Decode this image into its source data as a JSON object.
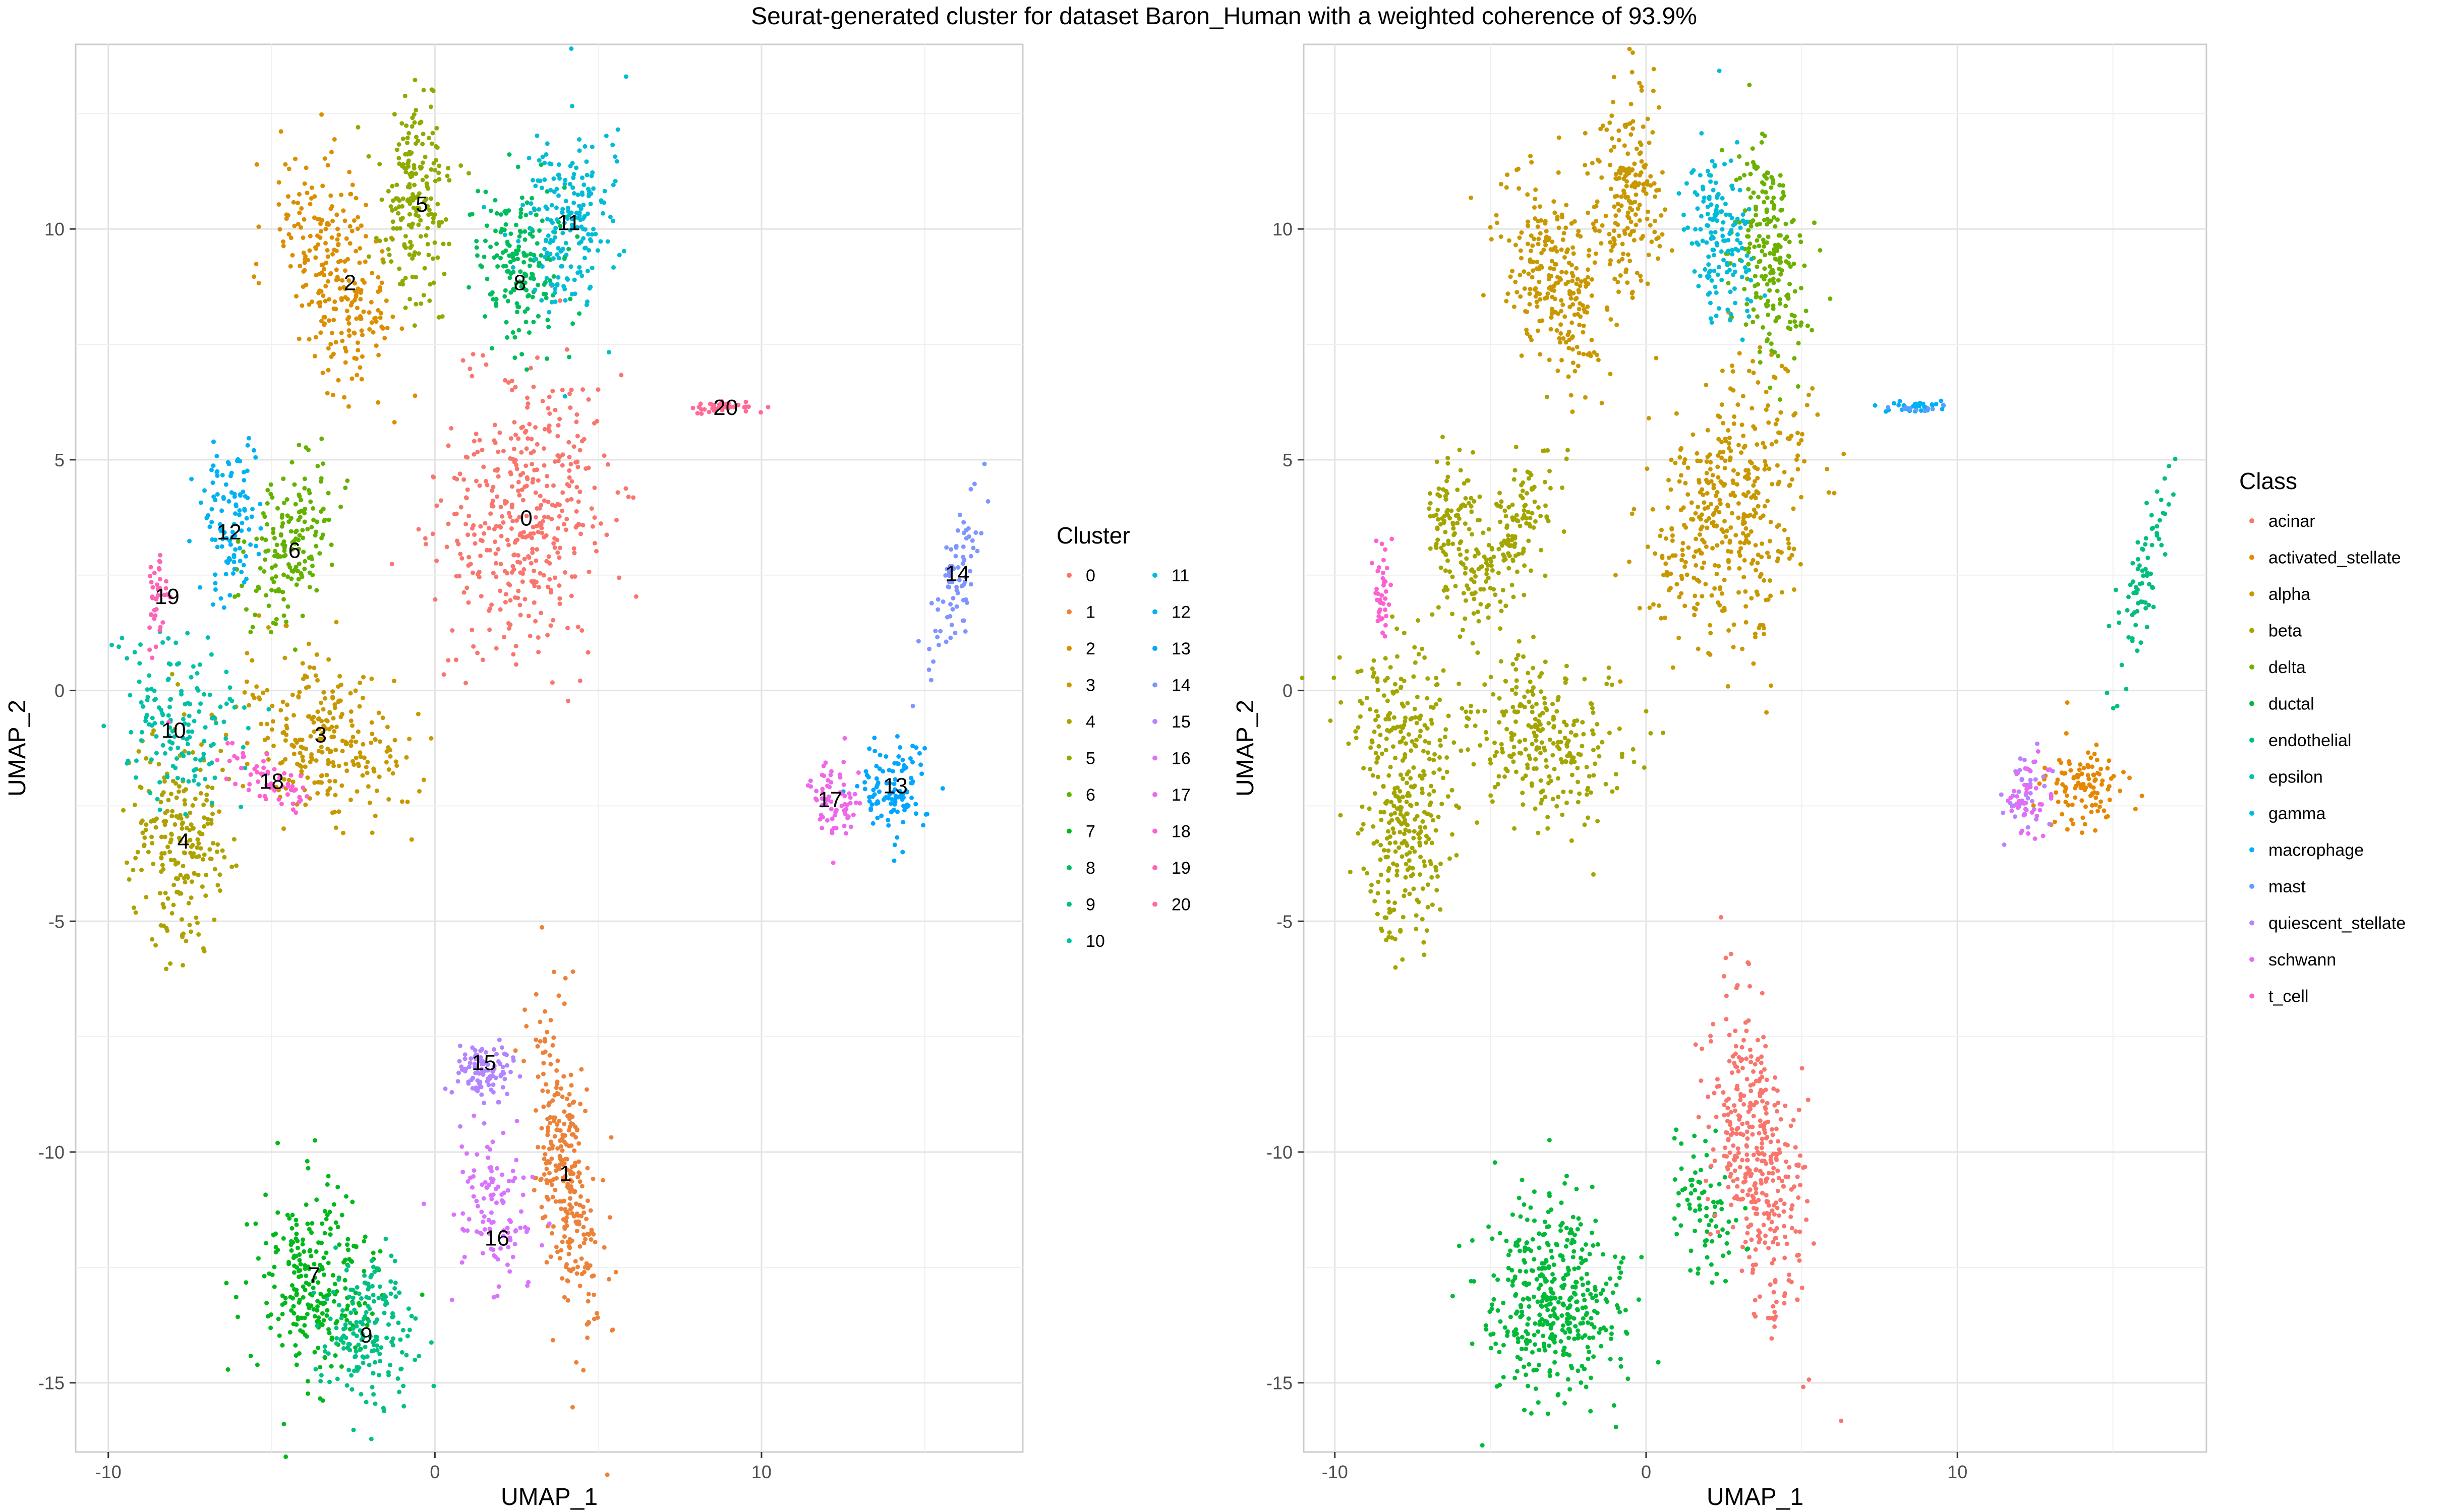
{
  "title": "Seurat-generated cluster for dataset Baron_Human with a weighted coherence of 93.9%",
  "chart_data": [
    {
      "type": "scatter",
      "xlabel": "UMAP_1",
      "ylabel": "UMAP_2",
      "xlim": [
        -11,
        18
      ],
      "ylim": [
        -16.5,
        14
      ],
      "xticks": [
        {
          "v": -10,
          "label": "-10"
        },
        {
          "v": 0,
          "label": "0"
        },
        {
          "v": 10,
          "label": "10"
        }
      ],
      "yticks": [
        {
          "v": -15,
          "label": "-15"
        },
        {
          "v": -10,
          "label": "-10"
        },
        {
          "v": -5,
          "label": "-5"
        },
        {
          "v": 0,
          "label": "0"
        },
        {
          "v": 5,
          "label": "5"
        },
        {
          "v": 10,
          "label": "10"
        }
      ],
      "grid": true,
      "legend_position": "right",
      "legend_title": "Cluster",
      "legend_columns": 2,
      "legend": [
        {
          "label": "0",
          "color": "#F8766D"
        },
        {
          "label": "1",
          "color": "#EC8239"
        },
        {
          "label": "2",
          "color": "#DB8E00"
        },
        {
          "label": "3",
          "color": "#C79800"
        },
        {
          "label": "4",
          "color": "#AEA200"
        },
        {
          "label": "5",
          "color": "#8FAA00"
        },
        {
          "label": "6",
          "color": "#64B200"
        },
        {
          "label": "7",
          "color": "#00B81B"
        },
        {
          "label": "8",
          "color": "#00BD5C"
        },
        {
          "label": "9",
          "color": "#00C085"
        },
        {
          "label": "10",
          "color": "#00C1A7"
        },
        {
          "label": "11",
          "color": "#00BCD6"
        },
        {
          "label": "12",
          "color": "#00B2F3"
        },
        {
          "label": "13",
          "color": "#00A6FF"
        },
        {
          "label": "14",
          "color": "#7F96FF"
        },
        {
          "label": "15",
          "color": "#B385FF"
        },
        {
          "label": "16",
          "color": "#D874FD"
        },
        {
          "label": "17",
          "color": "#EF67EB"
        },
        {
          "label": "18",
          "color": "#FD61D3"
        },
        {
          "label": "19",
          "color": "#FF63B6"
        },
        {
          "label": "20",
          "color": "#FF6B94"
        }
      ],
      "cluster_labels": [
        {
          "text": "0",
          "x": 2.8,
          "y": 3.7
        },
        {
          "text": "1",
          "x": 4.0,
          "y": -10.5
        },
        {
          "text": "2",
          "x": -2.6,
          "y": 8.8
        },
        {
          "text": "3",
          "x": -3.5,
          "y": -1.0
        },
        {
          "text": "4",
          "x": -7.7,
          "y": -3.3
        },
        {
          "text": "5",
          "x": -0.4,
          "y": 10.5
        },
        {
          "text": "6",
          "x": -4.3,
          "y": 3.0
        },
        {
          "text": "7",
          "x": -3.7,
          "y": -12.7
        },
        {
          "text": "8",
          "x": 2.6,
          "y": 8.8
        },
        {
          "text": "9",
          "x": -2.1,
          "y": -14.0
        },
        {
          "text": "10",
          "x": -8.0,
          "y": -0.9
        },
        {
          "text": "11",
          "x": 4.1,
          "y": 10.1
        },
        {
          "text": "12",
          "x": -6.3,
          "y": 3.4
        },
        {
          "text": "13",
          "x": 14.1,
          "y": -2.1
        },
        {
          "text": "14",
          "x": 16.0,
          "y": 2.5
        },
        {
          "text": "15",
          "x": 1.5,
          "y": -8.1
        },
        {
          "text": "16",
          "x": 1.9,
          "y": -11.9
        },
        {
          "text": "17",
          "x": 12.1,
          "y": -2.4
        },
        {
          "text": "18",
          "x": -5.0,
          "y": -2.0
        },
        {
          "text": "19",
          "x": -8.2,
          "y": 2.0
        },
        {
          "text": "20",
          "x": 8.9,
          "y": 6.1
        }
      ],
      "clusters": [
        {
          "id": "0",
          "color": "#F8766D",
          "cx": 2.7,
          "cy": 3.8,
          "sx": 1.2,
          "sy": 1.6,
          "rot": -30,
          "n": 420
        },
        {
          "id": "1",
          "color": "#EC8239",
          "cx": 4.0,
          "cy": -10.3,
          "sx": 0.45,
          "sy": 1.8,
          "rot": 10,
          "n": 300
        },
        {
          "id": "2",
          "color": "#DB8E00",
          "cx": -3.0,
          "cy": 9.0,
          "sx": 0.75,
          "sy": 1.3,
          "rot": 30,
          "n": 260
        },
        {
          "id": "3",
          "color": "#C79800",
          "cx": -3.4,
          "cy": -1.0,
          "sx": 1.3,
          "sy": 0.85,
          "rot": -10,
          "n": 260
        },
        {
          "id": "4",
          "color": "#AEA200",
          "cx": -7.8,
          "cy": -3.3,
          "sx": 0.7,
          "sy": 1.15,
          "rot": 0,
          "n": 220
        },
        {
          "id": "5",
          "color": "#8FAA00",
          "cx": -0.6,
          "cy": 10.7,
          "sx": 0.55,
          "sy": 1.1,
          "rot": 0,
          "n": 200
        },
        {
          "id": "6",
          "color": "#64B200",
          "cx": -4.5,
          "cy": 3.1,
          "sx": 0.55,
          "sy": 1.1,
          "rot": -30,
          "n": 170
        },
        {
          "id": "7",
          "color": "#00B81B",
          "cx": -3.7,
          "cy": -12.8,
          "sx": 0.9,
          "sy": 1.1,
          "rot": 0,
          "n": 260
        },
        {
          "id": "8",
          "color": "#00BD5C",
          "cx": 2.6,
          "cy": 9.2,
          "sx": 0.7,
          "sy": 1.0,
          "rot": 10,
          "n": 180
        },
        {
          "id": "9",
          "color": "#00C085",
          "cx": -2.0,
          "cy": -13.9,
          "sx": 0.7,
          "sy": 0.8,
          "rot": 0,
          "n": 180
        },
        {
          "id": "10",
          "color": "#00C1A7",
          "cx": -7.8,
          "cy": -0.7,
          "sx": 0.9,
          "sy": 1.0,
          "rot": 40,
          "n": 150
        },
        {
          "id": "11",
          "color": "#00BCD6",
          "cx": 4.1,
          "cy": 10.2,
          "sx": 0.7,
          "sy": 1.0,
          "rot": 0,
          "n": 200
        },
        {
          "id": "12",
          "color": "#00B2F3",
          "cx": -6.3,
          "cy": 3.6,
          "sx": 0.45,
          "sy": 0.8,
          "rot": 0,
          "n": 110
        },
        {
          "id": "13",
          "color": "#00A6FF",
          "cx": 14.0,
          "cy": -2.1,
          "sx": 0.6,
          "sy": 0.5,
          "rot": 0,
          "n": 110
        },
        {
          "id": "14",
          "color": "#7F96FF",
          "cx": 15.9,
          "cy": 2.3,
          "sx": 0.25,
          "sy": 1.1,
          "rot": -20,
          "n": 80
        },
        {
          "id": "15",
          "color": "#B385FF",
          "cx": 1.5,
          "cy": -8.2,
          "sx": 0.5,
          "sy": 0.4,
          "rot": 0,
          "n": 100
        },
        {
          "id": "16",
          "color": "#D874FD",
          "cx": 1.8,
          "cy": -11.3,
          "sx": 0.55,
          "sy": 0.9,
          "rot": 20,
          "n": 110
        },
        {
          "id": "17",
          "color": "#EF67EB",
          "cx": 12.3,
          "cy": -2.3,
          "sx": 0.35,
          "sy": 0.45,
          "rot": 0,
          "n": 70
        },
        {
          "id": "18",
          "color": "#FD61D3",
          "cx": -5.2,
          "cy": -1.9,
          "sx": 0.8,
          "sy": 0.22,
          "rot": -20,
          "n": 60
        },
        {
          "id": "19",
          "color": "#FF63B6",
          "cx": -8.5,
          "cy": 2.2,
          "sx": 0.15,
          "sy": 0.6,
          "rot": 0,
          "n": 40
        },
        {
          "id": "20",
          "color": "#FF6B94",
          "cx": 8.8,
          "cy": 6.15,
          "sx": 0.6,
          "sy": 0.06,
          "rot": 0,
          "n": 40
        }
      ]
    },
    {
      "type": "scatter",
      "xlabel": "UMAP_1",
      "ylabel": "UMAP_2",
      "xlim": [
        -11,
        18
      ],
      "ylim": [
        -16.5,
        14
      ],
      "xticks": [
        {
          "v": -10,
          "label": "-10"
        },
        {
          "v": 0,
          "label": "0"
        },
        {
          "v": 10,
          "label": "10"
        }
      ],
      "yticks": [
        {
          "v": -15,
          "label": "-15"
        },
        {
          "v": -10,
          "label": "-10"
        },
        {
          "v": -5,
          "label": "-5"
        },
        {
          "v": 0,
          "label": "0"
        },
        {
          "v": 5,
          "label": "5"
        },
        {
          "v": 10,
          "label": "10"
        }
      ],
      "grid": true,
      "legend_position": "right",
      "legend_title": "Class",
      "legend_columns": 1,
      "legend": [
        {
          "label": "acinar",
          "color": "#F8766D"
        },
        {
          "label": "activated_stellate",
          "color": "#E58700"
        },
        {
          "label": "alpha",
          "color": "#C99800"
        },
        {
          "label": "beta",
          "color": "#A3A500"
        },
        {
          "label": "delta",
          "color": "#6BB100"
        },
        {
          "label": "ductal",
          "color": "#00BA38"
        },
        {
          "label": "endothelial",
          "color": "#00BF7D"
        },
        {
          "label": "epsilon",
          "color": "#00C0AF"
        },
        {
          "label": "gamma",
          "color": "#00BCD8"
        },
        {
          "label": "macrophage",
          "color": "#00B0F6"
        },
        {
          "label": "mast",
          "color": "#619CFF"
        },
        {
          "label": "quiescent_stellate",
          "color": "#B983FF"
        },
        {
          "label": "schwann",
          "color": "#E76BF3"
        },
        {
          "label": "t_cell",
          "color": "#FD61D1"
        }
      ],
      "clusters": [
        {
          "id": "alpha",
          "color": "#C99800",
          "cx": 2.7,
          "cy": 3.8,
          "sx": 1.2,
          "sy": 1.6,
          "rot": -30,
          "n": 420
        },
        {
          "id": "alpha",
          "color": "#C99800",
          "cx": -3.0,
          "cy": 9.0,
          "sx": 0.75,
          "sy": 1.3,
          "rot": 30,
          "n": 260
        },
        {
          "id": "alpha",
          "color": "#C99800",
          "cx": -0.6,
          "cy": 10.7,
          "sx": 0.55,
          "sy": 1.1,
          "rot": 0,
          "n": 200
        },
        {
          "id": "beta",
          "color": "#A3A500",
          "cx": -3.4,
          "cy": -1.0,
          "sx": 1.3,
          "sy": 0.85,
          "rot": -10,
          "n": 260
        },
        {
          "id": "beta",
          "color": "#A3A500",
          "cx": -7.8,
          "cy": -3.3,
          "sx": 0.7,
          "sy": 1.15,
          "rot": 0,
          "n": 220
        },
        {
          "id": "beta",
          "color": "#A3A500",
          "cx": -4.5,
          "cy": 3.1,
          "sx": 0.55,
          "sy": 1.1,
          "rot": -30,
          "n": 170
        },
        {
          "id": "beta",
          "color": "#A3A500",
          "cx": -6.3,
          "cy": 3.6,
          "sx": 0.45,
          "sy": 0.8,
          "rot": 0,
          "n": 110
        },
        {
          "id": "beta",
          "color": "#A3A500",
          "cx": -7.8,
          "cy": -0.7,
          "sx": 0.9,
          "sy": 1.0,
          "rot": 40,
          "n": 150
        },
        {
          "id": "delta",
          "color": "#6BB100",
          "cx": 3.9,
          "cy": 9.6,
          "sx": 0.55,
          "sy": 1.2,
          "rot": 10,
          "n": 220
        },
        {
          "id": "gamma",
          "color": "#00BCD8",
          "cx": 2.4,
          "cy": 9.8,
          "sx": 0.55,
          "sy": 1.0,
          "rot": 10,
          "n": 160
        },
        {
          "id": "ductal",
          "color": "#00BA38",
          "cx": -3.0,
          "cy": -13.2,
          "sx": 1.1,
          "sy": 1.1,
          "rot": 0,
          "n": 420
        },
        {
          "id": "ductal",
          "color": "#00BA38",
          "cx": 1.9,
          "cy": -11.3,
          "sx": 0.55,
          "sy": 0.9,
          "rot": 20,
          "n": 80
        },
        {
          "id": "acinar",
          "color": "#F8766D",
          "cx": 3.5,
          "cy": -10.0,
          "sx": 0.65,
          "sy": 1.8,
          "rot": 15,
          "n": 400
        },
        {
          "id": "activated_stellate",
          "color": "#E58700",
          "cx": 14.0,
          "cy": -2.1,
          "sx": 0.6,
          "sy": 0.5,
          "rot": 0,
          "n": 110
        },
        {
          "id": "quiescent_stellate",
          "color": "#B983FF",
          "cx": 12.3,
          "cy": -2.3,
          "sx": 0.35,
          "sy": 0.45,
          "rot": 0,
          "n": 40
        },
        {
          "id": "schwann",
          "color": "#E76BF3",
          "cx": 12.3,
          "cy": -2.3,
          "sx": 0.35,
          "sy": 0.45,
          "rot": 0,
          "n": 40
        },
        {
          "id": "endothelial",
          "color": "#00BF7D",
          "cx": 15.9,
          "cy": 2.3,
          "sx": 0.25,
          "sy": 1.1,
          "rot": -20,
          "n": 80
        },
        {
          "id": "macrophage",
          "color": "#00B0F6",
          "cx": 8.8,
          "cy": 6.15,
          "sx": 0.6,
          "sy": 0.06,
          "rot": 0,
          "n": 30
        },
        {
          "id": "mast",
          "color": "#619CFF",
          "cx": 8.6,
          "cy": 6.1,
          "sx": 0.4,
          "sy": 0.05,
          "rot": 0,
          "n": 10
        },
        {
          "id": "t_cell",
          "color": "#FD61D1",
          "cx": -8.5,
          "cy": 2.2,
          "sx": 0.15,
          "sy": 0.6,
          "rot": 0,
          "n": 40
        }
      ]
    }
  ]
}
